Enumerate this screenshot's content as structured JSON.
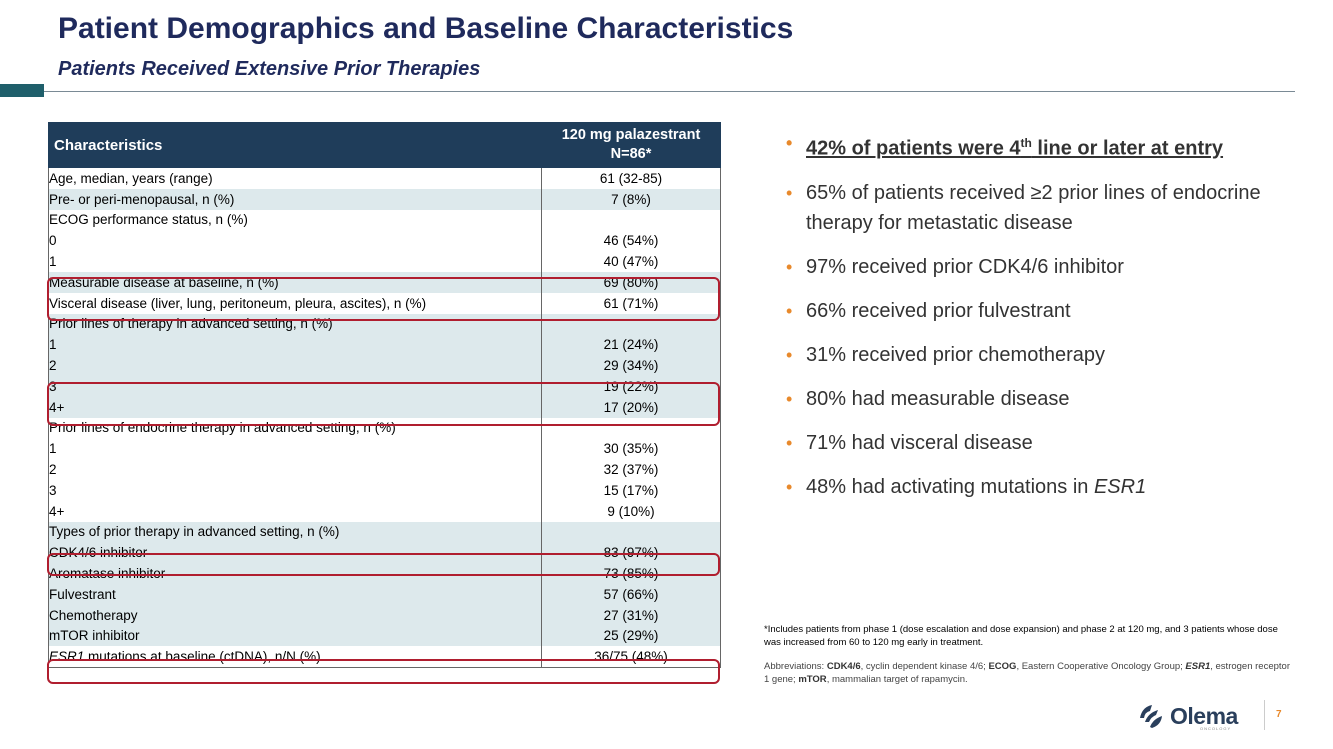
{
  "header": {
    "title": "Patient Demographics and Baseline Characteristics",
    "subtitle": "Patients Received Extensive Prior Therapies"
  },
  "table": {
    "col1_header": "Characteristics",
    "col2_header_line1": "120 mg palazestrant",
    "col2_header_line2": "N=86*",
    "rows": [
      {
        "label": "Age, median, years (range)",
        "value": "61 (32-85)"
      },
      {
        "label": "Pre- or peri-menopausal, n (%)",
        "value": "7 (8%)"
      },
      {
        "label": "ECOG performance status, n (%)",
        "value": ""
      },
      {
        "label": "0",
        "value": "46 (54%)"
      },
      {
        "label": "1",
        "value": "40 (47%)"
      },
      {
        "label": "Measurable disease at baseline, n (%)",
        "value": "69 (80%)"
      },
      {
        "label": "Visceral disease (liver, lung, peritoneum, pleura, ascites), n (%)",
        "value": "61 (71%)"
      },
      {
        "label": "Prior lines of therapy in advanced setting, n (%)",
        "value": ""
      },
      {
        "label": "1",
        "value": "21 (24%)"
      },
      {
        "label": "2",
        "value": "29 (34%)"
      },
      {
        "label": "3",
        "value": "19 (22%)"
      },
      {
        "label": "4+",
        "value": "17 (20%)"
      },
      {
        "label": "Prior lines of endocrine therapy in advanced setting, n (%)",
        "value": ""
      },
      {
        "label": "1",
        "value": "30 (35%)"
      },
      {
        "label": "2",
        "value": "32 (37%)"
      },
      {
        "label": "3",
        "value": "15 (17%)"
      },
      {
        "label": "4+",
        "value": "9 (10%)"
      },
      {
        "label": "Types of prior therapy in advanced setting, n (%)",
        "value": ""
      },
      {
        "label": "CDK4/6 inhibitor",
        "value": "83 (97%)"
      },
      {
        "label": "Aromatase inhibitor",
        "value": "73 (85%)"
      },
      {
        "label": "Fulvestrant",
        "value": "57 (66%)"
      },
      {
        "label": "Chemotherapy",
        "value": "27 (31%)"
      },
      {
        "label": "mTOR inhibitor",
        "value": "25 (29%)"
      },
      {
        "label_italic": "ESR1",
        "label": " mutations at baseline (ctDNA), n/N (%)",
        "value": "36/75 (48%)"
      }
    ]
  },
  "bullets": {
    "b1_pre": "42% of patients were 4",
    "b1_sup": "th",
    "b1_post": " line or later at entry",
    "b2": "65% of patients received ≥2 prior lines of endocrine therapy for metastatic disease",
    "b3": "97% received prior CDK4/6 inhibitor",
    "b4": "66% received prior fulvestrant",
    "b5": "31% received prior chemotherapy",
    "b6": "80% had measurable disease",
    "b7": "71% had visceral disease",
    "b8_pre": "48% had activating mutations in ",
    "b8_ital": "ESR1"
  },
  "footnote": "*Includes patients from phase 1 (dose escalation and dose expansion) and phase 2 at 120 mg, and 3 patients whose dose was increased from 60 to 120 mg early in treatment.",
  "abbreviations": {
    "prefix": "Abbreviations: ",
    "k1": "CDK4/6",
    "d1": ", cyclin dependent kinase 4/6; ",
    "k2": "ECOG",
    "d2": ", Eastern Cooperative Oncology Group; ",
    "k3": "ESR1",
    "d3": ", estrogen receptor 1 gene; ",
    "k4": "mTOR",
    "d4": ", mammalian target of rapamycin."
  },
  "footer": {
    "logo_text": "Olema",
    "logo_sub": "ONCOLOGY",
    "page_number": "7"
  },
  "colors": {
    "title": "#1f2a5c",
    "table_header": "#1f3d5a",
    "row_shade": "#dde9ec",
    "highlight": "#b01e2f",
    "bullet": "#e8892b"
  }
}
